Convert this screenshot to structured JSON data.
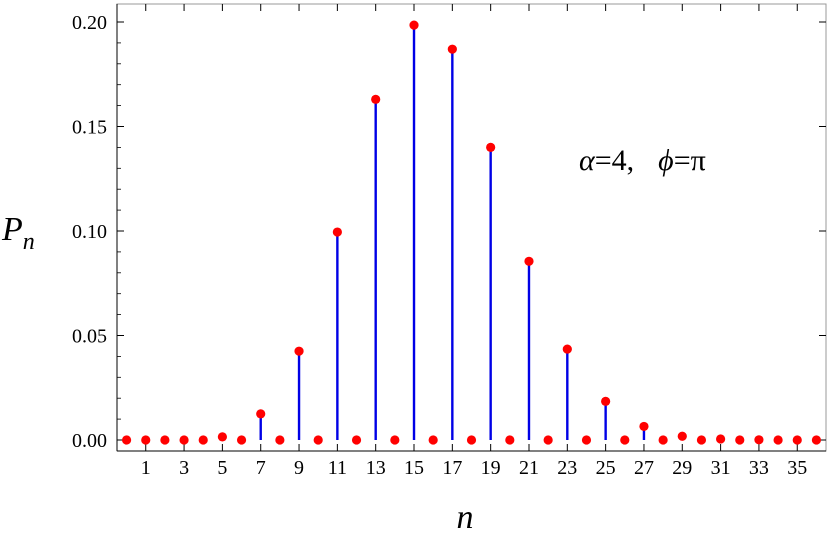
{
  "chart_data": {
    "type": "stem",
    "title": "",
    "xlabel": "n",
    "ylabel": {
      "base": "P",
      "sub": "n"
    },
    "annotation": {
      "alpha_label": "α",
      "alpha_eq": "=4,",
      "phi_label": "ϕ",
      "phi_eq": "=π"
    },
    "xlim": [
      -0.5,
      36.5
    ],
    "ylim": [
      0,
      0.2
    ],
    "x_ticks": [
      1,
      3,
      5,
      7,
      9,
      11,
      13,
      15,
      17,
      19,
      21,
      23,
      25,
      27,
      29,
      31,
      33,
      35
    ],
    "x_tick_labels": [
      "1",
      "3",
      "5",
      "7",
      "9",
      "11",
      "13",
      "15",
      "17",
      "19",
      "21",
      "23",
      "25",
      "27",
      "29",
      "31",
      "33",
      "35"
    ],
    "y_ticks": [
      0,
      0.05,
      0.1,
      0.15,
      0.2
    ],
    "y_tick_labels": [
      "0.00",
      "0.05",
      "0.10",
      "0.15",
      "0.20"
    ],
    "x": [
      0,
      1,
      2,
      3,
      4,
      5,
      6,
      7,
      8,
      9,
      10,
      11,
      12,
      13,
      14,
      15,
      16,
      17,
      18,
      19,
      20,
      21,
      22,
      23,
      24,
      25,
      26,
      27,
      28,
      29,
      30,
      31,
      32,
      33,
      34,
      35,
      36
    ],
    "values": [
      0,
      0,
      0,
      0,
      0,
      0.0015,
      0,
      0.0125,
      0,
      0.0425,
      0,
      0.0995,
      0,
      0.163,
      0,
      0.1985,
      0,
      0.187,
      0,
      0.14,
      0,
      0.0855,
      0,
      0.0435,
      0,
      0.0185,
      0,
      0.0065,
      0,
      0.0018,
      0,
      0.0005,
      0,
      0.0001,
      0,
      0,
      0
    ],
    "colors": {
      "stem": "#0000e6",
      "marker": "#ff0000",
      "frame": "#000000"
    },
    "grid": false,
    "legend": "none"
  }
}
